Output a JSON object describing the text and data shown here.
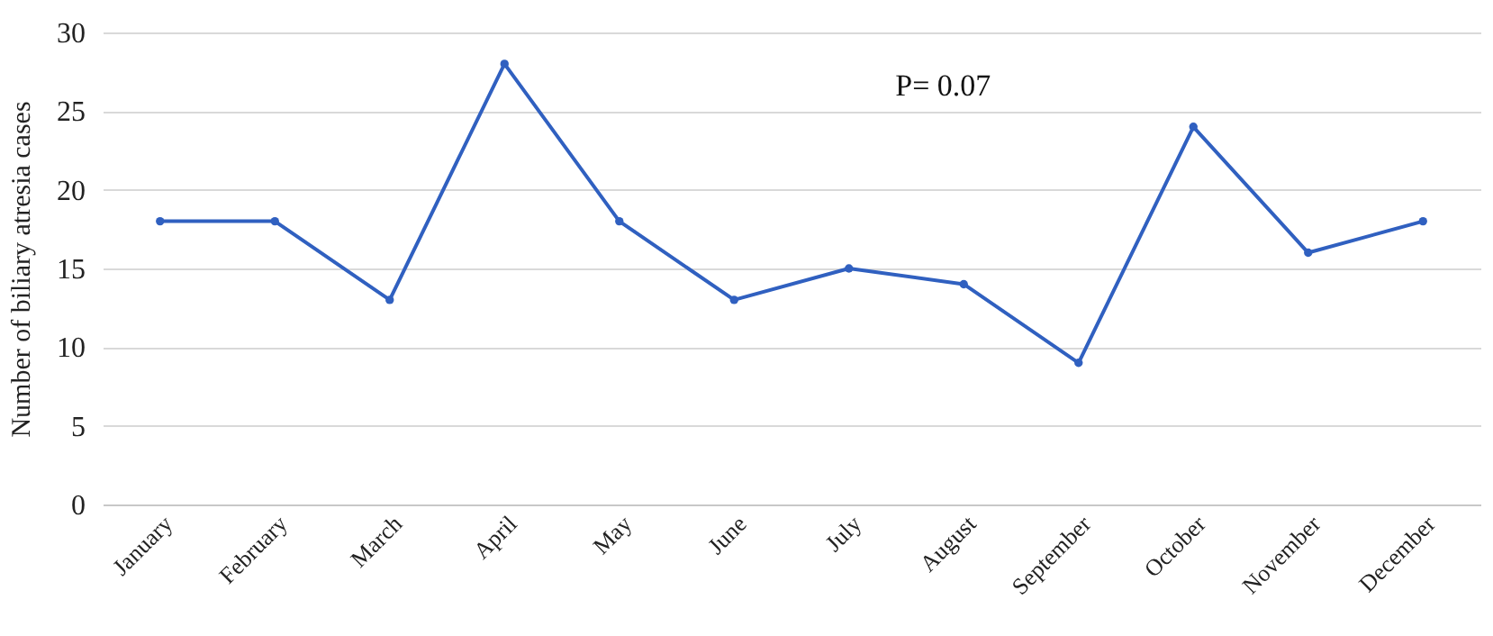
{
  "chart_data": {
    "type": "line",
    "ylabel": "Number of biliary atresia cases",
    "categories": [
      "January",
      "February",
      "March",
      "April",
      "May",
      "June",
      "July",
      "August",
      "September",
      "October",
      "November",
      "December"
    ],
    "series": [
      {
        "color": "#3060c0",
        "values": [
          18,
          18,
          13,
          28,
          18,
          13,
          15,
          14,
          9,
          24,
          16,
          18
        ]
      }
    ],
    "ylim": [
      0,
      30
    ],
    "yticks": [
      0,
      5,
      10,
      15,
      20,
      25,
      30
    ],
    "grid": "y",
    "marker": "circle",
    "line_style": "solid",
    "legend": false,
    "annotations": [
      "P= 0.07"
    ]
  }
}
